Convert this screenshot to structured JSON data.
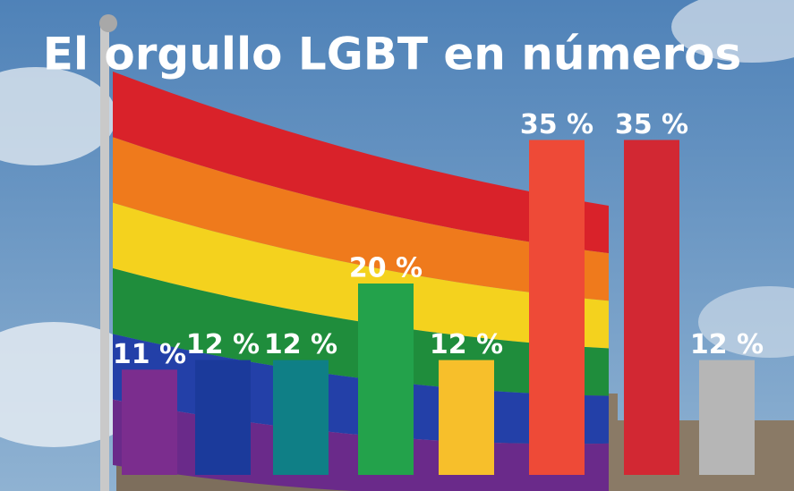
{
  "chart_data": {
    "type": "bar",
    "title": "El orgullo LGBT en números",
    "categories": [
      null,
      null,
      null,
      null,
      null,
      null,
      null,
      null
    ],
    "values": [
      11,
      12,
      12,
      20,
      12,
      35,
      35,
      12
    ],
    "value_labels": [
      "11 %",
      "12 %",
      "12 %",
      "20 %",
      "12 %",
      "35 %",
      "35 %",
      "12 %"
    ],
    "colors": [
      "#7b2d8e",
      "#1b3a9b",
      "#0f7f86",
      "#23a24b",
      "#f7bf2b",
      "#ee4a37",
      "#d22833",
      "#b6b6b6"
    ]
  }
}
